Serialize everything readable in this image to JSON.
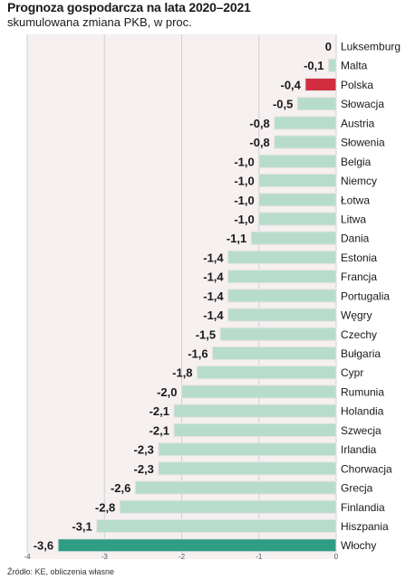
{
  "header": {
    "title": "Prognoza gospodarcza na lata 2020–2021",
    "subtitle": "skumulowana zmiana PKB, w proc."
  },
  "footer": {
    "source": "Źródło: KE, obliczenia własne"
  },
  "colors": {
    "default_bar": "#b7dccc",
    "highlight_poland": "#d12d3f",
    "highlight_italy": "#2e9d83",
    "gridline": "#cfcfcf",
    "plot_background": "#f6f0f0"
  },
  "chart_data": {
    "type": "bar",
    "orientation": "horizontal",
    "title": "Prognoza gospodarcza na lata 2020–2021",
    "subtitle": "skumulowana zmiana PKB, w proc.",
    "xlim": [
      -4,
      0
    ],
    "x_ticks": [
      -4,
      -3,
      -2,
      -1,
      0
    ],
    "x_tick_labels": [
      "-4",
      "-3",
      "-2",
      "-1",
      "0"
    ],
    "grid": true,
    "categories": [
      "Luksemburg",
      "Malta",
      "Polska",
      "Słowacja",
      "Austria",
      "Słowenia",
      "Belgia",
      "Niemcy",
      "Łotwa",
      "Litwa",
      "Dania",
      "Estonia",
      "Francja",
      "Portugalia",
      "Węgry",
      "Czechy",
      "Bułgaria",
      "Cypr",
      "Rumunia",
      "Holandia",
      "Szwecja",
      "Irlandia",
      "Chorwacja",
      "Grecja",
      "Finlandia",
      "Hiszpania",
      "Włochy"
    ],
    "values": [
      0,
      -0.1,
      -0.4,
      -0.5,
      -0.8,
      -0.8,
      -1.0,
      -1.0,
      -1.0,
      -1.0,
      -1.1,
      -1.4,
      -1.4,
      -1.4,
      -1.4,
      -1.5,
      -1.6,
      -1.8,
      -2.0,
      -2.1,
      -2.1,
      -2.3,
      -2.3,
      -2.6,
      -2.8,
      -3.1,
      -3.6
    ],
    "value_labels": [
      "0",
      "-0,1",
      "-0,4",
      "-0,5",
      "-0,8",
      "-0,8",
      "-1,0",
      "-1,0",
      "-1,0",
      "-1,0",
      "-1,1",
      "-1,4",
      "-1,4",
      "-1,4",
      "-1,4",
      "-1,5",
      "-1,6",
      "-1,8",
      "-2,0",
      "-2,1",
      "-2,1",
      "-2,3",
      "-2,3",
      "-2,6",
      "-2,8",
      "-3,1",
      "-3,6"
    ],
    "highlights": {
      "Polska": "#d12d3f",
      "Włochy": "#2e9d83"
    }
  }
}
